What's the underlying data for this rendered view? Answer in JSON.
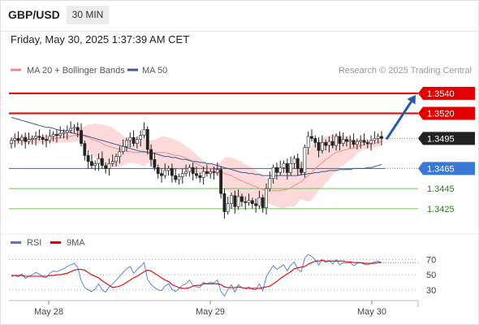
{
  "header": {
    "symbol": "GBP/USD",
    "timeframe": "30 MIN"
  },
  "datetime": "Friday, May 30, 2025 1:37:39 AM CET",
  "attribution": "Research © 2025 Trading Central",
  "colors": {
    "ma20_bollinger": "#f08b8b",
    "bollinger_fill": "#fbd3d3",
    "ma50": "#3a5a96",
    "candle_up": "#ffffff",
    "candle_down": "#222222",
    "resistance": "#e00000",
    "pivot": "#3a78d8",
    "support": "#6fbf5f",
    "support_label": "#2a7a1a",
    "forecast_arrow": "#245aa8",
    "rsi": "#4a78d8",
    "rsi_ma": "#e00000"
  },
  "chart_data": [
    {
      "type": "candlestick",
      "title": "",
      "x_ticks": [
        "May 28",
        "May 29",
        "May 30"
      ],
      "y_range": [
        1.3403,
        1.3552
      ],
      "legend": [
        {
          "name": "MA 20 + Bollinger Bands",
          "color": "#f08b8b"
        },
        {
          "name": "MA 50",
          "color": "#3a5a96"
        }
      ],
      "legend_placement": "top-left",
      "close": [
        1.3493,
        1.3495,
        1.3493,
        1.3496,
        1.3492,
        1.3494,
        1.3495,
        1.3497,
        1.3496,
        1.3494,
        1.3493,
        1.3497,
        1.3499,
        1.3498,
        1.35,
        1.3501,
        1.3503,
        1.3505,
        1.3506,
        1.3503,
        1.349,
        1.3478,
        1.3472,
        1.3468,
        1.347,
        1.3475,
        1.3468,
        1.3465,
        1.347,
        1.3472,
        1.3477,
        1.3482,
        1.3487,
        1.3493,
        1.3496,
        1.349,
        1.3494,
        1.3498,
        1.3504,
        1.3484,
        1.3474,
        1.3466,
        1.346,
        1.3458,
        1.3463,
        1.3465,
        1.3458,
        1.3454,
        1.3457,
        1.346,
        1.3462,
        1.3466,
        1.346,
        1.3458,
        1.3456,
        1.3462,
        1.346,
        1.3462,
        1.3461,
        1.3464,
        1.344,
        1.3422,
        1.343,
        1.3438,
        1.3427,
        1.3437,
        1.3432,
        1.3431,
        1.3433,
        1.343,
        1.3428,
        1.3436,
        1.3426,
        1.3445,
        1.3455,
        1.3466,
        1.3461,
        1.3466,
        1.347,
        1.3461,
        1.347,
        1.3475,
        1.3465,
        1.3461,
        1.3486,
        1.3497,
        1.3495,
        1.3491,
        1.3483,
        1.3491,
        1.3488,
        1.3492,
        1.3488,
        1.3497,
        1.349,
        1.3494,
        1.3492,
        1.3493,
        1.3489,
        1.3492,
        1.3493,
        1.3491,
        1.349,
        1.3493,
        1.3495,
        1.3497,
        1.3495
      ],
      "open_first": 1.349,
      "overlays": {
        "ma20": [
          1.3493,
          1.3493,
          1.3493,
          1.3494,
          1.3494,
          1.3494,
          1.3494,
          1.3494,
          1.3494,
          1.3494,
          1.3494,
          1.3495,
          1.3495,
          1.3495,
          1.3496,
          1.3496,
          1.3497,
          1.3497,
          1.3498,
          1.3498,
          1.3498,
          1.3497,
          1.3496,
          1.3494,
          1.3493,
          1.3492,
          1.349,
          1.3488,
          1.3487,
          1.3486,
          1.3485,
          1.3484,
          1.3483,
          1.3482,
          1.3482,
          1.3481,
          1.3481,
          1.3481,
          1.3481,
          1.3482,
          1.3481,
          1.3481,
          1.3481,
          1.3481,
          1.3481,
          1.348,
          1.3479,
          1.3478,
          1.3478,
          1.3477,
          1.3475,
          1.3474,
          1.3472,
          1.347,
          1.3468,
          1.3466,
          1.3465,
          1.3465,
          1.3464,
          1.3464,
          1.3462,
          1.346,
          1.3459,
          1.3458,
          1.3456,
          1.3454,
          1.3453,
          1.3451,
          1.345,
          1.3448,
          1.3447,
          1.3445,
          1.3444,
          1.3443,
          1.3443,
          1.3443,
          1.3443,
          1.3443,
          1.3444,
          1.3444,
          1.3446,
          1.3448,
          1.345,
          1.3452,
          1.3455,
          1.3458,
          1.3461,
          1.3465,
          1.3468,
          1.3471,
          1.3474,
          1.3476,
          1.3479,
          1.3481,
          1.3482,
          1.3483,
          1.3484,
          1.3485,
          1.3485,
          1.3487,
          1.3488,
          1.3489,
          1.3489,
          1.3489,
          1.349,
          1.3491,
          1.3492
        ],
        "bb_width": [
          0.0004,
          0.0004,
          0.0004,
          0.0004,
          0.0004,
          0.0004,
          0.0004,
          0.0004,
          0.0004,
          0.0004,
          0.0004,
          0.0004,
          0.0005,
          0.0005,
          0.0005,
          0.0005,
          0.0006,
          0.0006,
          0.0006,
          0.0006,
          0.0008,
          0.001,
          0.0013,
          0.0015,
          0.0017,
          0.0017,
          0.0019,
          0.002,
          0.002,
          0.002,
          0.0018,
          0.0017,
          0.0015,
          0.0012,
          0.0011,
          0.0011,
          0.0011,
          0.0012,
          0.0014,
          0.0011,
          0.0012,
          0.0013,
          0.0014,
          0.0016,
          0.0016,
          0.0016,
          0.0016,
          0.0015,
          0.0014,
          0.0013,
          0.0012,
          0.0011,
          0.001,
          0.0009,
          0.0008,
          0.0007,
          0.0006,
          0.0005,
          0.0005,
          0.0005,
          0.001,
          0.0016,
          0.0017,
          0.0018,
          0.0019,
          0.0019,
          0.0019,
          0.0018,
          0.0018,
          0.0017,
          0.0016,
          0.0016,
          0.0014,
          0.0013,
          0.0013,
          0.0015,
          0.0016,
          0.0017,
          0.0019,
          0.0017,
          0.0019,
          0.0021,
          0.0019,
          0.0017,
          0.0022,
          0.0026,
          0.0027,
          0.0027,
          0.0025,
          0.0025,
          0.0023,
          0.0022,
          0.002,
          0.0019,
          0.0016,
          0.0015,
          0.0013,
          0.0012,
          0.0009,
          0.0007,
          0.0006,
          0.0005,
          0.0004,
          0.0004,
          0.0004,
          0.0004,
          0.0004
        ],
        "ma50": [
          1.3516,
          1.3515,
          1.3514,
          1.3513,
          1.3512,
          1.3511,
          1.351,
          1.3509,
          1.3508,
          1.3507,
          1.3506,
          1.3506,
          1.3505,
          1.3504,
          1.3503,
          1.3503,
          1.3502,
          1.3501,
          1.35,
          1.3499,
          1.3499,
          1.3498,
          1.3497,
          1.3496,
          1.3495,
          1.3494,
          1.3493,
          1.3492,
          1.3491,
          1.349,
          1.3489,
          1.3488,
          1.3487,
          1.3486,
          1.3485,
          1.3484,
          1.3483,
          1.3482,
          1.3482,
          1.3481,
          1.348,
          1.348,
          1.3479,
          1.3478,
          1.3477,
          1.3477,
          1.3476,
          1.3476,
          1.3475,
          1.3474,
          1.3474,
          1.3473,
          1.3472,
          1.3472,
          1.3471,
          1.3471,
          1.347,
          1.347,
          1.3469,
          1.3468,
          1.3467,
          1.3466,
          1.3465,
          1.3464,
          1.3463,
          1.3462,
          1.3461,
          1.3461,
          1.346,
          1.346,
          1.3459,
          1.3459,
          1.3458,
          1.3458,
          1.3458,
          1.3458,
          1.3458,
          1.3458,
          1.3458,
          1.3458,
          1.3458,
          1.3458,
          1.3458,
          1.3459,
          1.3459,
          1.346,
          1.346,
          1.3461,
          1.3461,
          1.3462,
          1.3462,
          1.3463,
          1.3463,
          1.3463,
          1.3464,
          1.3464,
          1.3464,
          1.3464,
          1.3465,
          1.3465,
          1.3465,
          1.3465,
          1.3466,
          1.3466,
          1.3467,
          1.3468,
          1.3469
        ]
      },
      "levels": [
        {
          "value": 1.354,
          "label": "1.3540",
          "kind": "resistance"
        },
        {
          "value": 1.352,
          "label": "1.3520",
          "kind": "resistance"
        },
        {
          "value": 1.3495,
          "label": "1.3495",
          "kind": "last"
        },
        {
          "value": 1.3465,
          "label": "1.3465",
          "kind": "pivot"
        },
        {
          "value": 1.3445,
          "label": "1.3445",
          "kind": "support"
        },
        {
          "value": 1.3425,
          "label": "1.3425",
          "kind": "support"
        }
      ],
      "forecast_arrow": {
        "from": 1.3495,
        "to": 1.354,
        "direction": "up"
      }
    },
    {
      "type": "line",
      "title": "",
      "legend": [
        {
          "name": "RSI",
          "color": "#4a78d8"
        },
        {
          "name": "9MA",
          "color": "#e00000"
        }
      ],
      "legend_placement": "top-left",
      "y_ticks": [
        70,
        50,
        30
      ],
      "y_range": [
        18,
        78
      ],
      "series": [
        {
          "name": "RSI",
          "values": [
            48,
            49,
            47,
            51,
            45,
            48,
            50,
            53,
            51,
            47,
            46,
            52,
            55,
            54,
            56,
            58,
            61,
            63,
            65,
            60,
            42,
            33,
            30,
            28,
            31,
            38,
            30,
            27,
            34,
            38,
            43,
            48,
            53,
            58,
            61,
            52,
            57,
            61,
            66,
            44,
            37,
            33,
            30,
            29,
            35,
            38,
            31,
            28,
            32,
            36,
            38,
            43,
            36,
            34,
            33,
            40,
            38,
            40,
            39,
            43,
            28,
            22,
            30,
            37,
            27,
            37,
            33,
            32,
            34,
            31,
            30,
            38,
            29,
            47,
            55,
            62,
            57,
            60,
            63,
            55,
            63,
            67,
            57,
            54,
            72,
            77,
            74,
            70,
            63,
            70,
            66,
            69,
            64,
            70,
            63,
            66,
            65,
            66,
            62,
            65,
            66,
            64,
            63,
            65,
            67,
            68,
            66
          ]
        },
        {
          "name": "9MA",
          "values": [
            49,
            49,
            49,
            49,
            48,
            48,
            48,
            48,
            48,
            48,
            48,
            49,
            49,
            50,
            50,
            51,
            52,
            54,
            56,
            57,
            57,
            56,
            53,
            50,
            48,
            46,
            42,
            39,
            36,
            33,
            34,
            35,
            37,
            40,
            43,
            46,
            48,
            51,
            54,
            56,
            55,
            52,
            49,
            46,
            43,
            41,
            37,
            35,
            33,
            32,
            32,
            33,
            35,
            36,
            36,
            38,
            38,
            38,
            38,
            38,
            37,
            34,
            33,
            33,
            33,
            34,
            33,
            32,
            32,
            32,
            32,
            32,
            33,
            34,
            35,
            38,
            41,
            45,
            48,
            51,
            54,
            58,
            59,
            60,
            61,
            64,
            66,
            68,
            68,
            69,
            68,
            68,
            68,
            68,
            68,
            68,
            67,
            67,
            66,
            66,
            66,
            65,
            65,
            65,
            65,
            66,
            66
          ]
        }
      ]
    }
  ]
}
